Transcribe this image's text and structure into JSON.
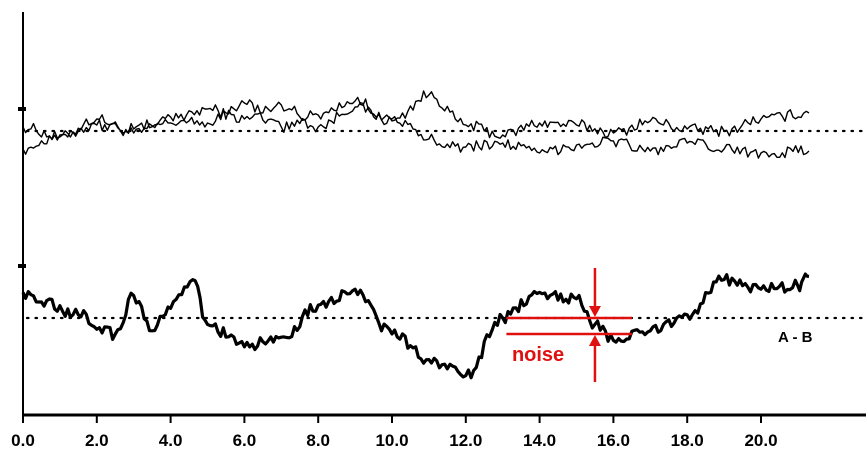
{
  "chart_data": {
    "type": "line",
    "title": "",
    "xlabel": "",
    "ylabel": "",
    "xlim": [
      0.0,
      21.3
    ],
    "x_ticks": [
      "0.0",
      "2.0",
      "4.0",
      "6.0",
      "8.0",
      "10.0",
      "12.0",
      "14.0",
      "16.0",
      "18.0",
      "20.0"
    ],
    "grid": false,
    "baselines": [
      {
        "panel": "top",
        "style": "dotted"
      },
      {
        "panel": "bottom",
        "style": "dotted"
      }
    ],
    "series": [
      {
        "panel": "top",
        "style": "thin",
        "x": [
          0,
          1,
          2,
          3,
          4,
          5,
          6,
          7,
          8,
          9,
          10,
          11,
          12,
          13,
          14,
          15,
          16,
          17,
          18,
          19,
          20,
          21.3
        ],
        "y": [
          0.2,
          -0.3,
          0.6,
          -0.1,
          0.4,
          1.1,
          0.6,
          1.3,
          0.2,
          1.2,
          0.5,
          1.8,
          0.3,
          -0.2,
          0.4,
          0.3,
          -0.1,
          0.5,
          0.1,
          0.0,
          0.6,
          0.9
        ]
      },
      {
        "panel": "top",
        "style": "thin",
        "x": [
          0,
          1,
          2,
          3,
          4,
          5,
          6,
          7,
          8,
          9,
          10,
          11,
          12,
          13,
          14,
          15,
          16,
          17,
          18,
          19,
          20,
          21.3
        ],
        "y": [
          -0.9,
          -0.2,
          0.3,
          0.1,
          0.7,
          0.4,
          1.4,
          0.2,
          0.8,
          1.5,
          0.6,
          -0.4,
          -0.8,
          -0.6,
          -1.1,
          -0.7,
          -0.5,
          -1.0,
          -0.6,
          -0.9,
          -1.1,
          -1.0
        ]
      },
      {
        "panel": "bottom",
        "style": "thick",
        "name": "A - B",
        "x": [
          0,
          0.5,
          1.5,
          2.5,
          3.0,
          3.5,
          4.0,
          4.6,
          5.0,
          6.0,
          7.0,
          8.0,
          9.0,
          10.0,
          11.0,
          12.0,
          13.0,
          14.0,
          15.0,
          15.5,
          16.0,
          17.0,
          18.0,
          19.0,
          20.0,
          21.0,
          21.3
        ],
        "y": [
          0.8,
          0.5,
          0.1,
          -0.5,
          0.7,
          -0.4,
          0.3,
          1.2,
          -0.2,
          -0.9,
          -0.6,
          0.4,
          0.9,
          -0.5,
          -1.3,
          -1.8,
          0.0,
          0.8,
          0.6,
          -0.2,
          -0.7,
          -0.4,
          0.1,
          1.2,
          0.9,
          1.0,
          1.3
        ]
      }
    ],
    "annotation": {
      "label": "noise",
      "series_label": "A - B",
      "arrow_x": 15.5,
      "upper_level": 0.0,
      "lower_level": -0.5,
      "line_x_start": 13.1,
      "line_x_end": 16.5
    },
    "colors": {
      "axis": "#000000",
      "data": "#000000",
      "annotation": "#e01010"
    }
  }
}
